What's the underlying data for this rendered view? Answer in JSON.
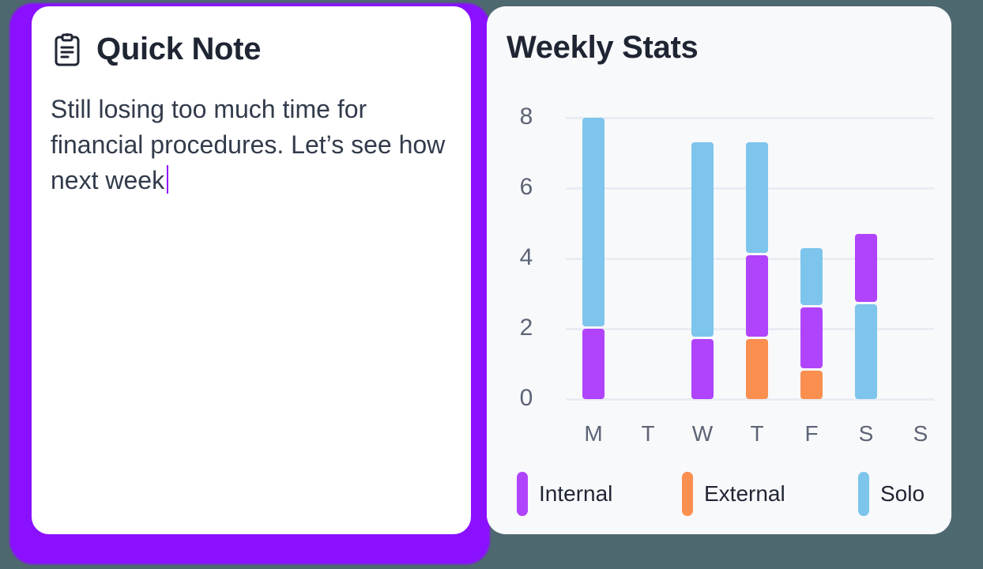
{
  "note": {
    "title": "Quick Note",
    "icon": "clipboard-icon",
    "text": "Still losing too much time for financial procedures. Let’s see how next week",
    "caret_color": "#9110ff",
    "accent_color": "#8b10ff"
  },
  "stats": {
    "title": "Weekly Stats",
    "legend": [
      {
        "label": "Internal",
        "color": "#b044fc"
      },
      {
        "label": "External",
        "color": "#fa8f50"
      },
      {
        "label": "Solo",
        "color": "#7dc5ec"
      }
    ]
  },
  "chart_data": {
    "type": "bar",
    "stacked": true,
    "title": "Weekly Stats",
    "xlabel": "",
    "ylabel": "",
    "categories": [
      "M",
      "T",
      "W",
      "T",
      "F",
      "S",
      "S"
    ],
    "yticks": [
      0,
      2,
      4,
      6,
      8
    ],
    "ylim": [
      0,
      8
    ],
    "grid": true,
    "legend_position": "bottom",
    "series": [
      {
        "name": "Internal",
        "color": "#b044fc",
        "values": [
          2.0,
          0,
          1.7,
          2.4,
          1.8,
          2.0,
          0
        ]
      },
      {
        "name": "External",
        "color": "#fa8f50",
        "values": [
          0,
          0,
          0,
          1.7,
          0.8,
          0,
          0
        ]
      },
      {
        "name": "Solo",
        "color": "#7dc5ec",
        "values": [
          6.0,
          0,
          5.6,
          3.2,
          1.7,
          2.7,
          0
        ]
      }
    ],
    "stack_order": [
      [
        "Internal",
        "Solo"
      ],
      [],
      [
        "Internal",
        "Solo"
      ],
      [
        "External",
        "Internal",
        "Solo"
      ],
      [
        "External",
        "Internal",
        "Solo"
      ],
      [
        "Solo",
        "Internal"
      ],
      []
    ]
  }
}
